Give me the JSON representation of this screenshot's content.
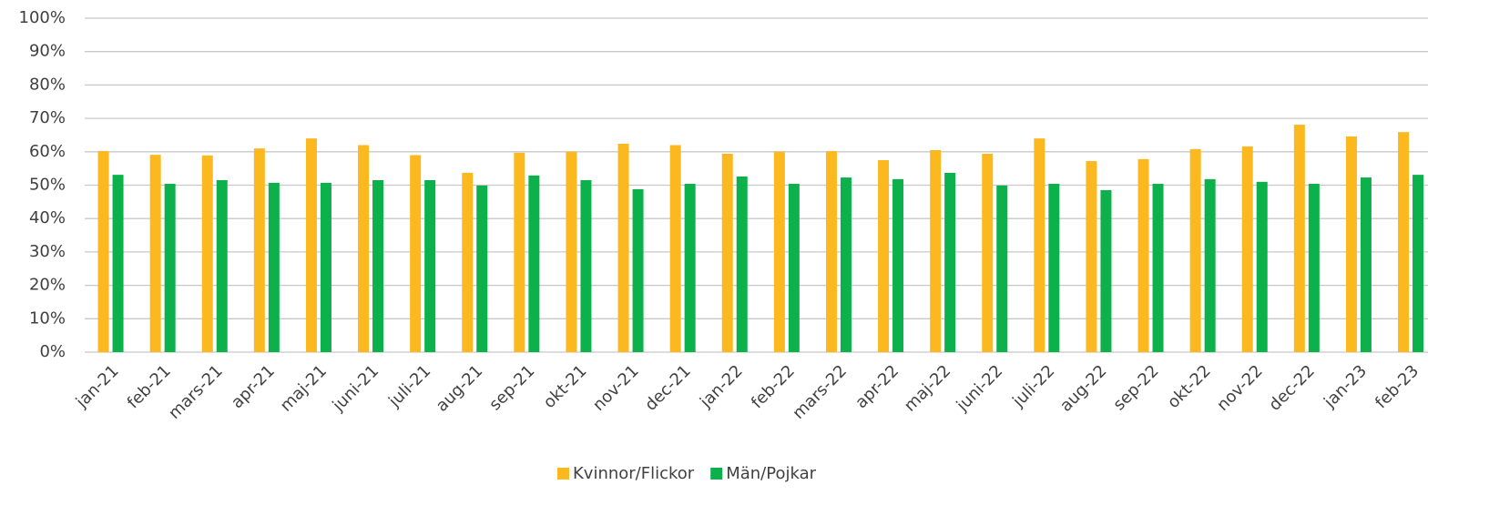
{
  "chart_data": {
    "type": "bar",
    "categories": [
      "jan-21",
      "feb-21",
      "mars-21",
      "apr-21",
      "maj-21",
      "juni-21",
      "juli-21",
      "aug-21",
      "sep-21",
      "okt-21",
      "nov-21",
      "dec-21",
      "jan-22",
      "feb-22",
      "mars-22",
      "apr-22",
      "maj-22",
      "juni-22",
      "juli-22",
      "aug-22",
      "sep-22",
      "okt-22",
      "nov-22",
      "dec-22",
      "jan-23",
      "feb-23"
    ],
    "series": [
      {
        "name": "Kvinnor/Flickor",
        "color": "#fbb91f",
        "values": [
          60.2,
          59.1,
          58.9,
          61.0,
          64.0,
          62.0,
          59.0,
          53.7,
          59.7,
          60.0,
          62.4,
          62.0,
          59.4,
          60.0,
          60.2,
          57.5,
          60.5,
          59.4,
          64.0,
          57.2,
          57.8,
          60.8,
          61.6,
          68.1,
          64.6,
          65.9
        ]
      },
      {
        "name": "Män/Pojkar",
        "color": "#0db14b",
        "values": [
          53.1,
          50.4,
          51.5,
          50.7,
          50.7,
          51.5,
          51.5,
          49.9,
          52.9,
          51.5,
          48.8,
          50.4,
          52.6,
          50.4,
          52.3,
          51.8,
          53.7,
          49.9,
          50.4,
          48.5,
          50.4,
          51.8,
          51.0,
          50.4,
          52.3,
          53.1
        ]
      }
    ],
    "ylim": [
      0,
      100
    ],
    "yticks": [
      {
        "value": 0,
        "label": "0%"
      },
      {
        "value": 10,
        "label": "10%"
      },
      {
        "value": 20,
        "label": "20%"
      },
      {
        "value": 30,
        "label": "30%"
      },
      {
        "value": 40,
        "label": "40%"
      },
      {
        "value": 50,
        "label": "50%"
      },
      {
        "value": 60,
        "label": "60%"
      },
      {
        "value": 70,
        "label": "70%"
      },
      {
        "value": 80,
        "label": "80%"
      },
      {
        "value": 90,
        "label": "90%"
      },
      {
        "value": 100,
        "label": "100%"
      }
    ],
    "grid": true,
    "legend": "bottom"
  }
}
